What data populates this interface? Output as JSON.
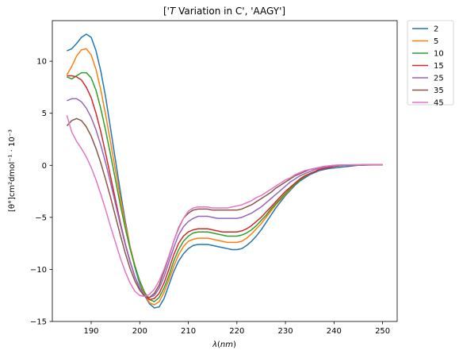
{
  "chart_data": {
    "type": "line",
    "title": "['$T$ Variation in C', 'AAGY']",
    "title_parts": {
      "pre": "['",
      "italic": "T",
      "post": " Variation in C', 'AAGY']"
    },
    "xlabel": "λ(nm)",
    "xlabel_parts": {
      "italic1": "λ",
      "plain1": "(",
      "italic2": "nm",
      "plain2": ")"
    },
    "ylabel": "[θ°]cm²dmol⁻¹ · 10⁻³",
    "xlim": [
      182,
      253
    ],
    "ylim": [
      -15,
      13.9
    ],
    "xticks": [
      190,
      200,
      210,
      220,
      230,
      240,
      250
    ],
    "yticks": [
      -15,
      -10,
      -5,
      0,
      5,
      10
    ],
    "grid": false,
    "legend_position": "outside-top-right",
    "x": [
      185,
      186,
      187,
      188,
      189,
      190,
      191,
      192,
      193,
      194,
      195,
      196,
      197,
      198,
      199,
      200,
      201,
      202,
      203,
      204,
      205,
      206,
      207,
      208,
      209,
      210,
      211,
      212,
      213,
      214,
      215,
      216,
      217,
      218,
      219,
      220,
      221,
      222,
      223,
      224,
      225,
      226,
      227,
      228,
      229,
      230,
      231,
      232,
      233,
      234,
      235,
      236,
      237,
      238,
      239,
      240,
      241,
      242,
      243,
      244,
      245,
      246,
      247,
      248,
      249,
      250
    ],
    "series": [
      {
        "name": "2",
        "color": "#1f77b4",
        "values": [
          11.0,
          11.2,
          11.7,
          12.3,
          12.6,
          12.3,
          11.0,
          9.0,
          6.5,
          3.5,
          0.5,
          -2.5,
          -5.3,
          -7.8,
          -9.8,
          -11.4,
          -12.5,
          -13.3,
          -13.7,
          -13.6,
          -12.8,
          -11.5,
          -10.2,
          -9.2,
          -8.5,
          -8.0,
          -7.7,
          -7.6,
          -7.6,
          -7.6,
          -7.7,
          -7.8,
          -7.9,
          -8.0,
          -8.1,
          -8.1,
          -8.0,
          -7.7,
          -7.3,
          -6.8,
          -6.2,
          -5.5,
          -4.8,
          -4.1,
          -3.5,
          -2.9,
          -2.4,
          -1.9,
          -1.5,
          -1.2,
          -0.9,
          -0.7,
          -0.5,
          -0.4,
          -0.3,
          -0.25,
          -0.2,
          -0.15,
          -0.1,
          -0.05,
          0.0,
          0.0,
          0.02,
          0.03,
          0.03,
          0.03
        ]
      },
      {
        "name": "5",
        "color": "#ff7f0e",
        "values": [
          8.7,
          9.5,
          10.5,
          11.1,
          11.2,
          10.6,
          9.2,
          7.2,
          4.8,
          2.2,
          -0.5,
          -3.1,
          -5.6,
          -7.8,
          -9.6,
          -11.2,
          -12.4,
          -13.2,
          -13.4,
          -13.1,
          -12.2,
          -11.0,
          -9.7,
          -8.6,
          -7.8,
          -7.3,
          -7.1,
          -7.0,
          -7.0,
          -7.0,
          -7.1,
          -7.2,
          -7.3,
          -7.4,
          -7.4,
          -7.4,
          -7.3,
          -7.0,
          -6.6,
          -6.1,
          -5.6,
          -5.0,
          -4.4,
          -3.8,
          -3.3,
          -2.8,
          -2.3,
          -1.8,
          -1.4,
          -1.1,
          -0.8,
          -0.6,
          -0.4,
          -0.3,
          -0.2,
          -0.1,
          -0.05,
          0.0,
          0.0,
          0.02,
          0.03,
          0.04,
          0.05,
          0.05,
          0.05,
          0.05
        ]
      },
      {
        "name": "10",
        "color": "#2ca02c",
        "values": [
          8.5,
          8.3,
          8.6,
          8.9,
          8.9,
          8.4,
          7.2,
          5.4,
          3.3,
          1.0,
          -1.4,
          -3.8,
          -6.0,
          -8.0,
          -9.7,
          -11.1,
          -12.2,
          -12.9,
          -13.1,
          -12.7,
          -11.8,
          -10.6,
          -9.2,
          -8.1,
          -7.3,
          -6.8,
          -6.5,
          -6.4,
          -6.4,
          -6.4,
          -6.5,
          -6.6,
          -6.7,
          -6.8,
          -6.8,
          -6.8,
          -6.7,
          -6.5,
          -6.2,
          -5.8,
          -5.3,
          -4.8,
          -4.2,
          -3.7,
          -3.2,
          -2.7,
          -2.2,
          -1.8,
          -1.4,
          -1.1,
          -0.8,
          -0.6,
          -0.4,
          -0.3,
          -0.2,
          -0.1,
          -0.05,
          0.0,
          0.02,
          0.03,
          0.04,
          0.05,
          0.05,
          0.05,
          0.05,
          0.05
        ]
      },
      {
        "name": "15",
        "color": "#d62728",
        "values": [
          8.6,
          8.6,
          8.5,
          8.2,
          7.5,
          6.5,
          5.0,
          3.2,
          1.1,
          -1.1,
          -3.3,
          -5.5,
          -7.5,
          -9.2,
          -10.7,
          -11.8,
          -12.5,
          -12.9,
          -12.8,
          -12.3,
          -11.3,
          -10.0,
          -8.6,
          -7.5,
          -6.8,
          -6.4,
          -6.2,
          -6.1,
          -6.1,
          -6.1,
          -6.2,
          -6.3,
          -6.4,
          -6.4,
          -6.4,
          -6.4,
          -6.3,
          -6.1,
          -5.8,
          -5.4,
          -5.0,
          -4.5,
          -4.0,
          -3.5,
          -3.0,
          -2.5,
          -2.1,
          -1.7,
          -1.3,
          -1.0,
          -0.8,
          -0.6,
          -0.4,
          -0.3,
          -0.2,
          -0.1,
          -0.05,
          0.0,
          0.02,
          0.03,
          0.04,
          0.05,
          0.05,
          0.05,
          0.05,
          0.05
        ]
      },
      {
        "name": "25",
        "color": "#9467bd",
        "values": [
          6.2,
          6.4,
          6.4,
          6.1,
          5.5,
          4.6,
          3.4,
          1.9,
          0.2,
          -1.7,
          -3.7,
          -5.7,
          -7.6,
          -9.3,
          -10.7,
          -11.8,
          -12.5,
          -12.7,
          -12.5,
          -11.8,
          -10.7,
          -9.3,
          -7.9,
          -6.7,
          -5.9,
          -5.4,
          -5.1,
          -4.9,
          -4.9,
          -4.9,
          -5.0,
          -5.1,
          -5.1,
          -5.1,
          -5.1,
          -5.1,
          -5.0,
          -4.8,
          -4.6,
          -4.3,
          -4.0,
          -3.6,
          -3.2,
          -2.8,
          -2.4,
          -2.0,
          -1.6,
          -1.3,
          -1.0,
          -0.8,
          -0.6,
          -0.4,
          -0.3,
          -0.2,
          -0.1,
          -0.05,
          0.0,
          0.02,
          0.03,
          0.04,
          0.05,
          0.05,
          0.05,
          0.05,
          0.05,
          0.05
        ]
      },
      {
        "name": "35",
        "color": "#8c564b",
        "values": [
          3.8,
          4.3,
          4.5,
          4.3,
          3.7,
          2.8,
          1.6,
          0.2,
          -1.4,
          -3.1,
          -4.9,
          -6.7,
          -8.4,
          -9.9,
          -11.1,
          -12.0,
          -12.6,
          -12.7,
          -12.3,
          -11.5,
          -10.2,
          -8.8,
          -7.3,
          -6.0,
          -5.1,
          -4.6,
          -4.3,
          -4.2,
          -4.2,
          -4.2,
          -4.3,
          -4.3,
          -4.3,
          -4.3,
          -4.3,
          -4.3,
          -4.2,
          -4.0,
          -3.8,
          -3.5,
          -3.2,
          -2.9,
          -2.6,
          -2.2,
          -1.9,
          -1.6,
          -1.3,
          -1.0,
          -0.8,
          -0.6,
          -0.4,
          -0.3,
          -0.2,
          -0.1,
          -0.05,
          0.0,
          0.02,
          0.03,
          0.04,
          0.05,
          0.05,
          0.05,
          0.05,
          0.05,
          0.05,
          0.05
        ]
      },
      {
        "name": "45",
        "color": "#e377c2",
        "values": [
          4.8,
          3.2,
          2.3,
          1.6,
          0.8,
          -0.2,
          -1.4,
          -2.8,
          -4.3,
          -5.9,
          -7.4,
          -8.9,
          -10.2,
          -11.3,
          -12.1,
          -12.5,
          -12.6,
          -12.4,
          -11.9,
          -11.1,
          -10.0,
          -8.7,
          -7.3,
          -6.1,
          -5.1,
          -4.4,
          -4.1,
          -4.0,
          -4.0,
          -4.0,
          -4.1,
          -4.1,
          -4.1,
          -4.1,
          -4.0,
          -3.9,
          -3.8,
          -3.6,
          -3.4,
          -3.1,
          -2.9,
          -2.6,
          -2.3,
          -2.0,
          -1.7,
          -1.4,
          -1.2,
          -0.9,
          -0.7,
          -0.5,
          -0.4,
          -0.3,
          -0.2,
          -0.1,
          -0.05,
          0.0,
          0.02,
          0.03,
          0.04,
          0.05,
          0.05,
          0.05,
          0.05,
          0.05,
          0.05,
          0.05
        ]
      }
    ]
  }
}
